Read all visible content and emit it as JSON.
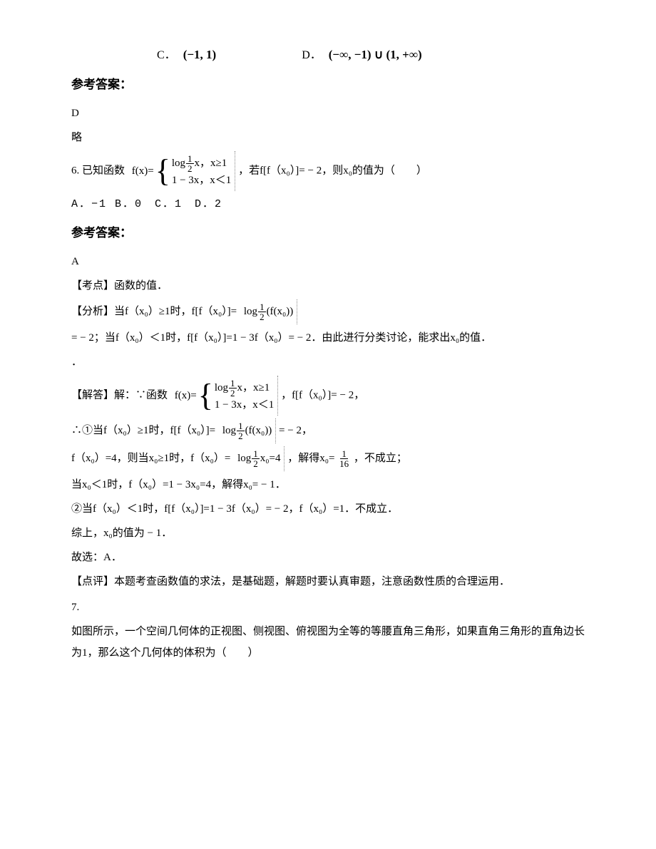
{
  "options_cd": {
    "c_label": "C．",
    "c_expr": "(−1, 1)",
    "d_label": "D．",
    "d_expr": "(−∞, −1) ∪ (1, +∞)"
  },
  "answer_heading": "参考答案：",
  "answer5": "D",
  "lue": "略",
  "q6": {
    "prefix": "6. 已知函数",
    "fx_label": "f(x)=",
    "piece1_left": "log",
    "piece1_base_num": "1",
    "piece1_base_den": "2",
    "piece1_right": "x，x≥1",
    "piece2": "1 − 3x，x＜1",
    "tail": "，若f[f（x₀）]= − 2，则x₀的值为（　　）",
    "options": "A．−1  B．0　C．1　D．2"
  },
  "answer6": "A",
  "kaodian": "【考点】函数的值．",
  "fenxi_prefix": "【分析】当f（x₀）≥1时，f[f（x₀）]=",
  "log_fx0": {
    "pre": "log",
    "num": "1",
    "den": "2",
    "arg": "(f(x₀))"
  },
  "fenxi_line2": "= − 2；当f（x₀）＜1时，f[f（x₀）]=1 − 3f（x₀）= − 2．由此进行分类讨论，能求出x₀的值．",
  "jieda_prefix": "【解答】解：∵函数",
  "jieda_tail": "，f[f（x₀）]= − 2，",
  "case1_prefix": "∴①当f（x₀）≥1时，f[f（x₀）]=",
  "case1_tail": " = − 2，",
  "fx4_prefix": "f（x₀）=4，则当x₀≥1时，f（x₀）=",
  "log_x0_4": {
    "pre": "log",
    "num": "1",
    "den": "2",
    "arg": "x₀=4"
  },
  "fx4_mid": "，解得x₀=",
  "one_sixteen": {
    "num": "1",
    "den": "16"
  },
  "fx4_tail": "，不成立；",
  "case1b": "当x₀＜1时，f（x₀）=1 − 3x₀=4，解得x₀= − 1．",
  "case2": "②当f（x₀）＜1时，f[f（x₀）]=1 − 3f（x₀）= − 2，f（x₀）=1．不成立．",
  "zongshang": "综上，x₀的值为 − 1．",
  "guxuan": "故选：A．",
  "dianping": "【点评】本题考查函数值的求法，是基础题，解题时要认真审题，注意函数性质的合理运用．",
  "q7_num": "7.",
  "q7_text": "如图所示，一个空间几何体的正视图、侧视图、俯视图为全等的等腰直角三角形，如果直角三角形的直角边长为1，那么这个几何体的体积为（　　）"
}
